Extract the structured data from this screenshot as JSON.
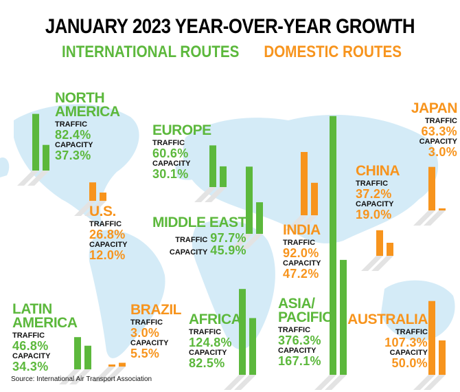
{
  "chart_data": {
    "type": "bar",
    "title": "JANUARY 2023 YEAR-OVER-YEAR GROWTH",
    "series": [
      {
        "name": "INTERNATIONAL ROUTES",
        "color": "#5cb83c"
      },
      {
        "name": "DOMESTIC ROUTES",
        "color": "#f7941d"
      }
    ],
    "measures": [
      "TRAFFIC",
      "CAPACITY"
    ],
    "source": "Source: International Air Transport Association",
    "regions": [
      {
        "name": "NORTH\nAMERICA",
        "series": 0,
        "values": [
          82.4,
          37.3
        ],
        "value_labels": [
          "82.4%",
          "37.3%"
        ]
      },
      {
        "name": "U.S.",
        "series": 1,
        "values": [
          26.8,
          12.0
        ],
        "value_labels": [
          "26.8%",
          "12.0%"
        ]
      },
      {
        "name": "EUROPE",
        "series": 0,
        "values": [
          60.6,
          30.1
        ],
        "value_labels": [
          "60.6%",
          "30.1%"
        ]
      },
      {
        "name": "MIDDLE EAST",
        "series": 0,
        "values": [
          97.7,
          45.9
        ],
        "value_labels": [
          "97.7%",
          "45.9%"
        ]
      },
      {
        "name": "LATIN\nAMERICA",
        "series": 0,
        "values": [
          46.8,
          34.3
        ],
        "value_labels": [
          "46.8%",
          "34.3%"
        ]
      },
      {
        "name": "BRAZIL",
        "series": 1,
        "values": [
          3.0,
          5.5
        ],
        "value_labels": [
          "3.0%",
          "5.5%"
        ]
      },
      {
        "name": "AFRICA",
        "series": 0,
        "values": [
          124.8,
          82.5
        ],
        "value_labels": [
          "124.8%",
          "82.5%"
        ]
      },
      {
        "name": "INDIA",
        "series": 1,
        "values": [
          92.0,
          47.2
        ],
        "value_labels": [
          "92.0%",
          "47.2%"
        ]
      },
      {
        "name": "ASIA/\nPACIFIC",
        "series": 0,
        "values": [
          376.3,
          167.1
        ],
        "value_labels": [
          "376.3%",
          "167.1%"
        ]
      },
      {
        "name": "CHINA",
        "series": 1,
        "values": [
          37.2,
          19.0
        ],
        "value_labels": [
          "37.2%",
          "19.0%"
        ]
      },
      {
        "name": "JAPAN",
        "series": 1,
        "values": [
          63.3,
          3.0
        ],
        "value_labels": [
          "63.3%",
          "3.0%"
        ]
      },
      {
        "name": "AUSTRALIA",
        "series": 1,
        "values": [
          107.3,
          50.0
        ],
        "value_labels": [
          "107.3%",
          "50.0%"
        ]
      }
    ]
  }
}
